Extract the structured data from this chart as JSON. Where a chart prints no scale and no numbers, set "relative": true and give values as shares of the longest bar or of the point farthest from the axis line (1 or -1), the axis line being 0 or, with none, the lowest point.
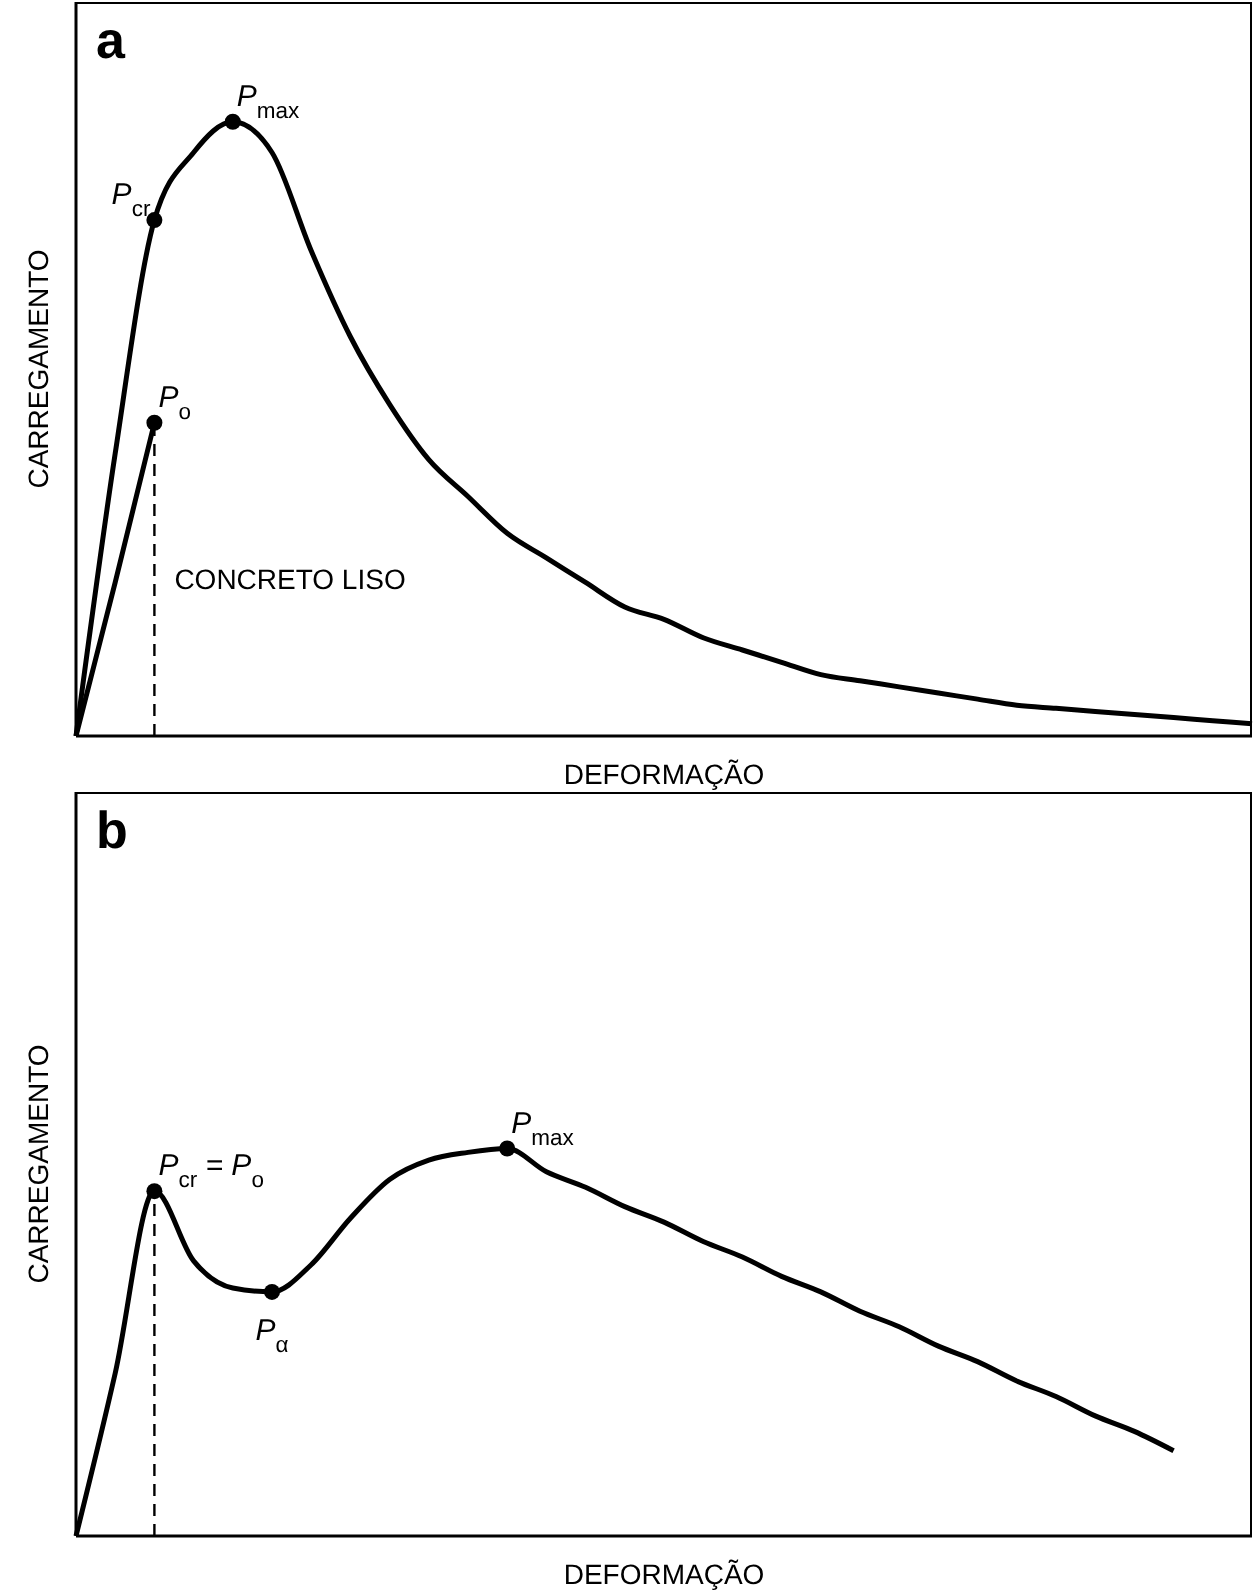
{
  "chart_data": [
    {
      "type": "line",
      "title": "a",
      "xlabel": "DEFORMAÇÃO",
      "ylabel": "CARREGAMENTO",
      "relative": true,
      "legend": false,
      "grid": false,
      "categories": [
        null,
        null,
        null,
        null,
        null,
        null,
        null,
        null,
        null,
        null,
        null,
        null,
        null,
        null,
        null,
        null,
        null,
        null,
        null,
        null,
        null,
        null,
        null,
        null,
        null,
        null,
        null,
        null,
        null,
        null,
        null
      ],
      "series": [
        {
          "color": "#000000",
          "values": [
            0,
            0.46,
            0.84,
            0.95,
            1.0,
            0.95,
            0.79,
            0.65,
            0.54,
            0.45,
            0.39,
            0.33,
            0.29,
            0.25,
            0.21,
            0.19,
            0.16,
            0.14,
            0.12,
            0.1,
            0.09,
            0.08,
            0.07,
            0.06,
            0.05,
            0.045,
            0.04,
            0.035,
            0.03,
            0.025,
            0.02
          ]
        },
        {
          "name": "CONCRETO LISO",
          "color": "#000000",
          "values": [
            0,
            0.25,
            0.51,
            null,
            null,
            null,
            null,
            null,
            null,
            null,
            null,
            null,
            null,
            null,
            null,
            null,
            null,
            null,
            null,
            null,
            null,
            null,
            null,
            null,
            null,
            null,
            null,
            null,
            null,
            null,
            null
          ]
        }
      ],
      "annotations": [
        "P$_{cr}$",
        "P$_{max}$",
        "P$_{o}$"
      ]
    },
    {
      "type": "line",
      "title": "b",
      "xlabel": "DEFORMAÇÃO",
      "ylabel": "CARREGAMENTO",
      "relative": true,
      "legend": false,
      "grid": false,
      "categories": [
        null,
        null,
        null,
        null,
        null,
        null,
        null,
        null,
        null,
        null,
        null,
        null,
        null,
        null,
        null,
        null,
        null,
        null,
        null,
        null,
        null,
        null,
        null,
        null,
        null,
        null,
        null,
        null,
        null,
        null,
        null
      ],
      "series": [
        {
          "color": "#000000",
          "values": [
            0,
            0.42,
            0.89,
            0.71,
            0.64,
            0.63,
            0.7,
            0.82,
            0.92,
            0.97,
            0.99,
            1.0,
            0.94,
            0.9,
            0.85,
            0.81,
            0.76,
            0.72,
            0.67,
            0.63,
            0.58,
            0.54,
            0.49,
            0.45,
            0.4,
            0.36,
            0.31,
            0.27,
            0.22,
            null,
            null
          ]
        }
      ],
      "annotations": [
        "P$_{cr}$ = P$_{o}$",
        "P$_{α}$",
        "P$_{max}$"
      ]
    }
  ]
}
